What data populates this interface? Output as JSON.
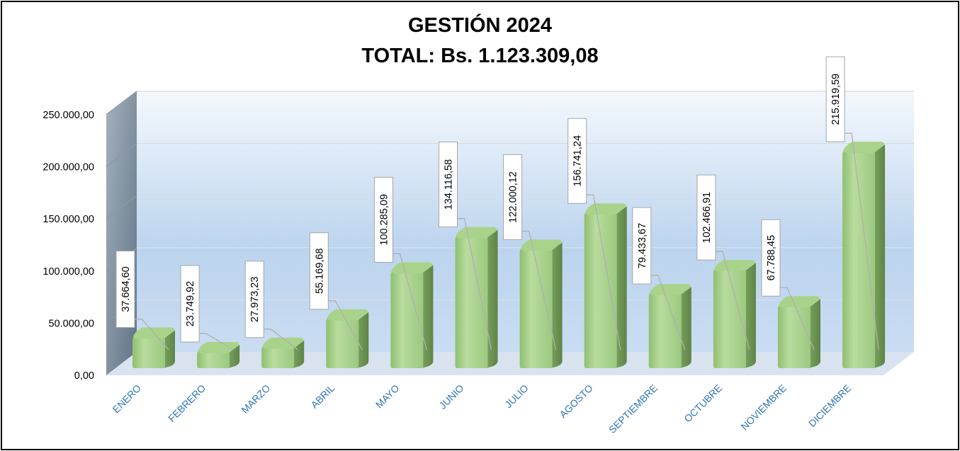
{
  "chart_data": {
    "type": "bar",
    "title": "GESTIÓN 2024",
    "subtitle": "TOTAL: Bs. 1.123.309,08",
    "categories": [
      "ENERO",
      "FEBRERO",
      "MARZO",
      "ABRIL",
      "MAYO",
      "JUNIO",
      "JULIO",
      "AGOSTO",
      "SEPTIEMBRE",
      "OCTUBRE",
      "NOVIEMBRE",
      "DICIEMBRE"
    ],
    "values": [
      37664.6,
      23749.92,
      27973.23,
      55169.68,
      100285.09,
      134116.58,
      122000.12,
      156741.24,
      79433.67,
      102466.91,
      67788.45,
      215919.59
    ],
    "data_labels": [
      "37.664,60",
      "23.749,92",
      "27.973,23",
      "55.169,68",
      "100.285,09",
      "134.116,58",
      "122.000,12",
      "156.741,24",
      "79.433,67",
      "102.466,91",
      "67.788,45",
      "215.919,59"
    ],
    "yticks": [
      0,
      50000,
      100000,
      150000,
      200000,
      250000
    ],
    "ytick_labels": [
      "0,00",
      "50.000,00",
      "100.000,00",
      "150.000,00",
      "200.000,00",
      "250.000,00"
    ],
    "ylim": [
      0,
      250000
    ],
    "grid": true,
    "legend": "none",
    "bar_color": "#9dc97f",
    "category_label_color": "#2e75b6"
  }
}
